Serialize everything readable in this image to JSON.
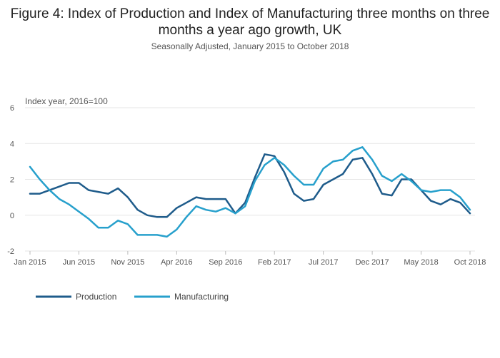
{
  "chart_data": {
    "type": "line",
    "title": "Figure 4: Index of Production and Index of Manufacturing three months on three months a year ago growth, UK",
    "subtitle": "Seasonally Adjusted, January 2015 to October 2018",
    "ylabel": "Index year, 2016=100",
    "xlabel": "",
    "ylim": [
      -2,
      6
    ],
    "yticks": [
      "6",
      "4",
      "2",
      "0",
      "-2"
    ],
    "ytick_values": [
      6,
      4,
      2,
      0,
      -2
    ],
    "grid": true,
    "legend_position": "bottom-left",
    "x": [
      "Jan 2015",
      "Feb 2015",
      "Mar 2015",
      "Apr 2015",
      "May 2015",
      "Jun 2015",
      "Jul 2015",
      "Aug 2015",
      "Sep 2015",
      "Oct 2015",
      "Nov 2015",
      "Dec 2015",
      "Jan 2016",
      "Feb 2016",
      "Mar 2016",
      "Apr 2016",
      "May 2016",
      "Jun 2016",
      "Jul 2016",
      "Aug 2016",
      "Sep 2016",
      "Oct 2016",
      "Nov 2016",
      "Dec 2016",
      "Jan 2017",
      "Feb 2017",
      "Mar 2017",
      "Apr 2017",
      "May 2017",
      "Jun 2017",
      "Jul 2017",
      "Aug 2017",
      "Sep 2017",
      "Oct 2017",
      "Nov 2017",
      "Dec 2017",
      "Jan 2018",
      "Feb 2018",
      "Mar 2018",
      "Apr 2018",
      "May 2018",
      "Jun 2018",
      "Jul 2018",
      "Aug 2018",
      "Sep 2018",
      "Oct 2018"
    ],
    "xticks": [
      {
        "label": "Jan 2015",
        "index": 0
      },
      {
        "label": "Jun 2015",
        "index": 5
      },
      {
        "label": "Nov 2015",
        "index": 10
      },
      {
        "label": "Apr 2016",
        "index": 15
      },
      {
        "label": "Sep 2016",
        "index": 20
      },
      {
        "label": "Feb 2017",
        "index": 25
      },
      {
        "label": "Jul 2017",
        "index": 30
      },
      {
        "label": "Dec 2017",
        "index": 35
      },
      {
        "label": "May 2018",
        "index": 40
      },
      {
        "label": "Oct 2018",
        "index": 45
      }
    ],
    "series": [
      {
        "name": "Production",
        "color": "#1f5c8b",
        "values": [
          1.2,
          1.2,
          1.4,
          1.6,
          1.8,
          1.8,
          1.4,
          1.3,
          1.2,
          1.5,
          1.0,
          0.3,
          0.0,
          -0.1,
          -0.1,
          0.4,
          0.7,
          1.0,
          0.9,
          0.9,
          0.9,
          0.1,
          0.7,
          2.1,
          3.4,
          3.3,
          2.4,
          1.2,
          0.8,
          0.9,
          1.7,
          2.0,
          2.3,
          3.1,
          3.2,
          2.3,
          1.2,
          1.1,
          2.0,
          2.0,
          1.4,
          0.8,
          0.6,
          0.9,
          0.7,
          0.1
        ]
      },
      {
        "name": "Manufacturing",
        "color": "#27a0cc",
        "values": [
          2.7,
          2.0,
          1.4,
          0.9,
          0.6,
          0.2,
          -0.2,
          -0.7,
          -0.7,
          -0.3,
          -0.5,
          -1.1,
          -1.1,
          -1.1,
          -1.2,
          -0.8,
          -0.1,
          0.5,
          0.3,
          0.2,
          0.4,
          0.1,
          0.5,
          1.9,
          2.8,
          3.2,
          2.8,
          2.2,
          1.7,
          1.7,
          2.6,
          3.0,
          3.1,
          3.6,
          3.8,
          3.1,
          2.2,
          1.9,
          2.3,
          1.9,
          1.4,
          1.3,
          1.4,
          1.4,
          1.0,
          0.3
        ]
      }
    ]
  }
}
